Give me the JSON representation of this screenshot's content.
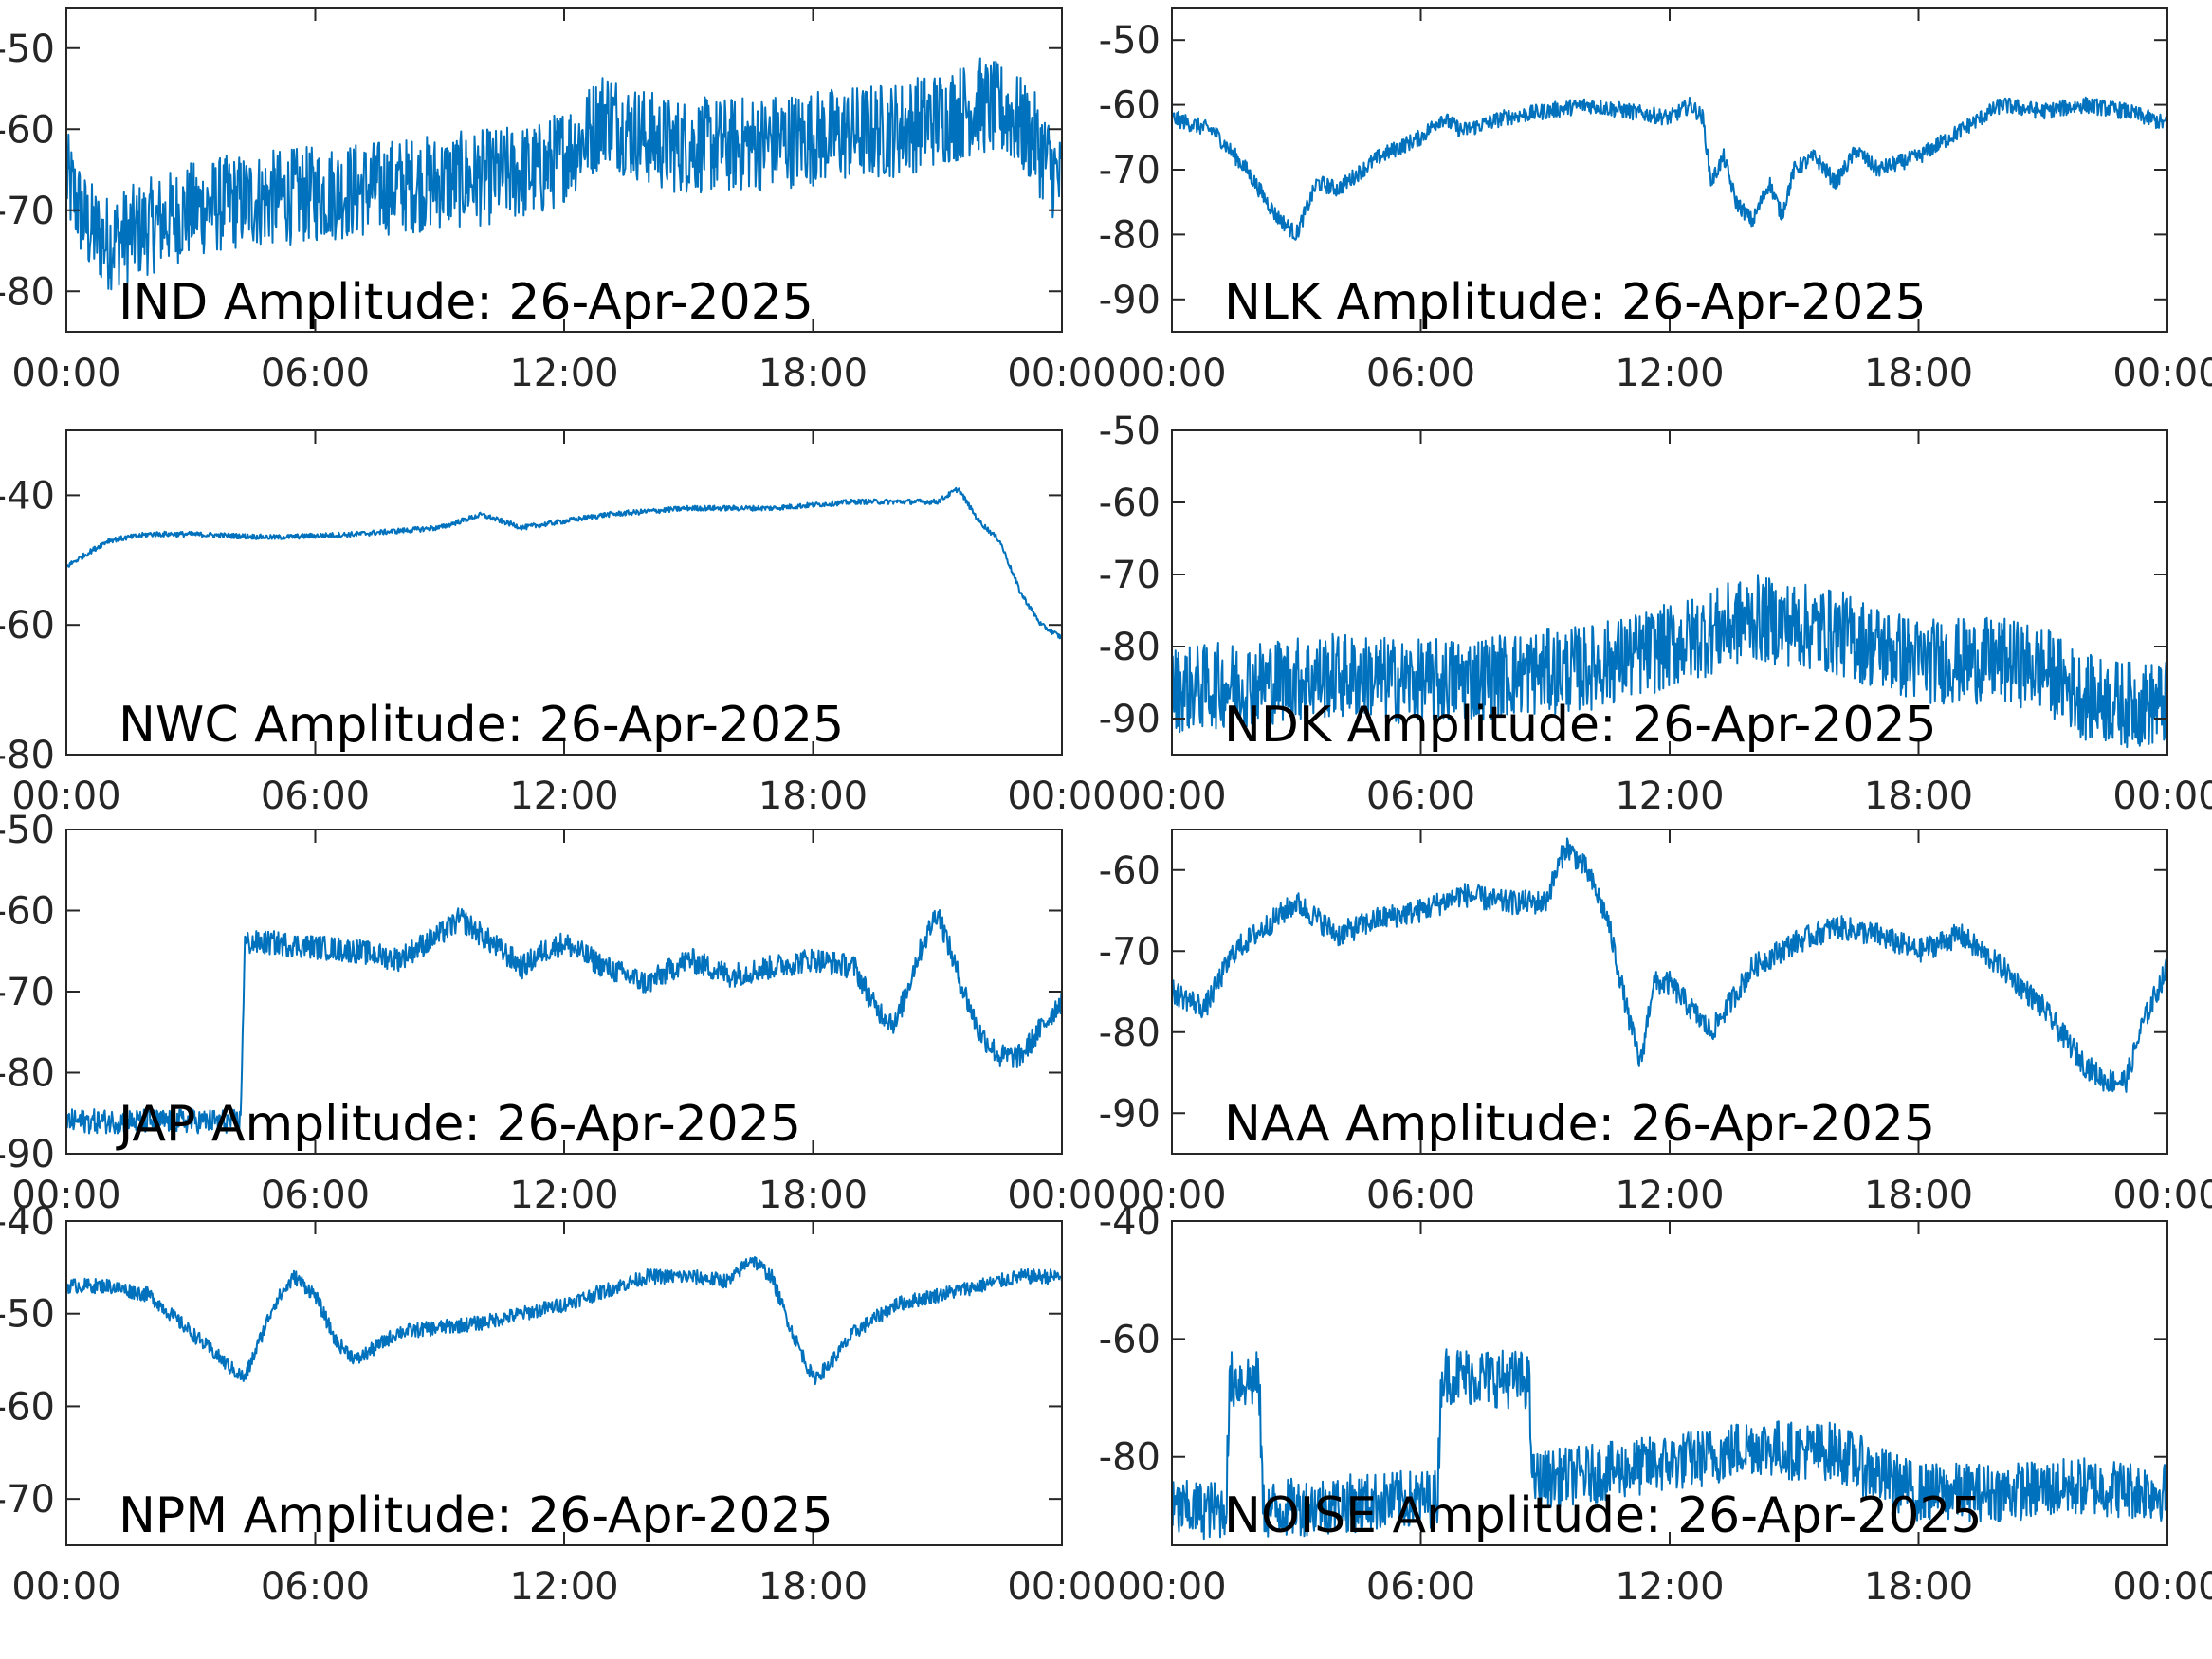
{
  "figure": {
    "trace_color": "#0072BD",
    "x_axis": {
      "ticks": [
        "00:00",
        "06:00",
        "12:00",
        "18:00",
        "00:00"
      ],
      "range_hours": [
        0,
        24
      ]
    }
  },
  "chart_data": [
    {
      "type": "line",
      "title": "IND Amplitude: 26-Apr-2025",
      "x_unit": "hours",
      "ylim": [
        -85,
        -45
      ],
      "y_ticks": [
        -50,
        -60,
        -70,
        -80
      ],
      "y_tick_labels": [
        "-50",
        "-60",
        "-70",
        "-80"
      ],
      "noise_band": 12,
      "series": [
        {
          "x": [
            0,
            0.5,
            1,
            2,
            3,
            4,
            6,
            8,
            10,
            11.5,
            12.5,
            13,
            13.5,
            14.5,
            16,
            18,
            20,
            21.5,
            22,
            22.7,
            23.3,
            24
          ],
          "y": [
            -66,
            -72,
            -74,
            -72,
            -70,
            -69,
            -68,
            -67,
            -66,
            -65,
            -61,
            -58,
            -60,
            -62,
            -62,
            -61,
            -60,
            -58,
            -57,
            -58,
            -61,
            -67
          ]
        }
      ]
    },
    {
      "type": "line",
      "title": "NLK Amplitude: 26-Apr-2025",
      "x_unit": "hours",
      "ylim": [
        -95,
        -45
      ],
      "y_ticks": [
        -50,
        -60,
        -70,
        -80,
        -90
      ],
      "y_tick_labels": [
        "-50",
        "-60",
        "-70",
        "-80",
        "-90"
      ],
      "noise_band": 2.5,
      "series": [
        {
          "x": [
            0,
            1,
            1.8,
            2.5,
            3,
            3.5,
            4,
            5,
            6,
            6.5,
            7,
            8,
            9,
            10,
            11,
            12,
            12.5,
            12.8,
            13,
            13.3,
            13.6,
            14,
            14.4,
            14.7,
            15,
            15.5,
            16,
            16.5,
            17,
            18,
            19,
            20,
            21,
            22,
            23,
            24
          ],
          "y": [
            -62,
            -64,
            -70,
            -77,
            -80,
            -72,
            -73,
            -68,
            -65,
            -62,
            -64,
            -62,
            -61,
            -60,
            -61,
            -62,
            -60,
            -62,
            -72,
            -68,
            -75,
            -78,
            -72,
            -77,
            -70,
            -68,
            -72,
            -67,
            -70,
            -68,
            -64,
            -60,
            -61,
            -60,
            -61,
            -63
          ]
        }
      ]
    },
    {
      "type": "line",
      "title": "NWC Amplitude: 26-Apr-2025",
      "x_unit": "hours",
      "ylim": [
        -80,
        -30
      ],
      "y_ticks": [
        -40,
        -60,
        -80
      ],
      "y_tick_labels": [
        "-40",
        "-60",
        "-80"
      ],
      "noise_band": 0.8,
      "series": [
        {
          "x": [
            0,
            1,
            2,
            3,
            5,
            7,
            9,
            10,
            11,
            13,
            15,
            17,
            19,
            20,
            21,
            21.5,
            22,
            22.5,
            23,
            23.5,
            24
          ],
          "y": [
            -51,
            -47,
            -46,
            -46,
            -46.5,
            -46,
            -45,
            -43,
            -45,
            -43,
            -42,
            -42,
            -41,
            -41,
            -41,
            -39,
            -44,
            -47,
            -55,
            -60,
            -62
          ]
        }
      ]
    },
    {
      "type": "line",
      "title": "NDK Amplitude: 26-Apr-2025",
      "x_unit": "hours",
      "ylim": [
        -95,
        -50
      ],
      "y_ticks": [
        -50,
        -60,
        -70,
        -80,
        -90
      ],
      "y_tick_labels": [
        "-50",
        "-60",
        "-70",
        "-80",
        "-90"
      ],
      "noise_band": 12,
      "series": [
        {
          "x": [
            0,
            2,
            4,
            6,
            8,
            10,
            12,
            14,
            16,
            18,
            20,
            21,
            22,
            23,
            24
          ],
          "y": [
            -86,
            -85,
            -84,
            -85,
            -84,
            -83,
            -80,
            -76,
            -78,
            -82,
            -82,
            -83,
            -87,
            -88,
            -88
          ]
        }
      ]
    },
    {
      "type": "line",
      "title": "JAP Amplitude: 26-Apr-2025",
      "x_unit": "hours",
      "ylim": [
        -90,
        -50
      ],
      "y_ticks": [
        -50,
        -60,
        -70,
        -80,
        -90
      ],
      "y_tick_labels": [
        "-50",
        "-60",
        "-70",
        "-80",
        "-90"
      ],
      "noise_band": 3,
      "series": [
        {
          "x": [
            0,
            1,
            2,
            3,
            4.2,
            4.3,
            5,
            6,
            7,
            8,
            9,
            9.5,
            10,
            11,
            11.5,
            12,
            13,
            14,
            15,
            16,
            17,
            18,
            19,
            19.5,
            20,
            20.5,
            21,
            21.5,
            22,
            22.5,
            23,
            24
          ],
          "y": [
            -86,
            -86,
            -86,
            -86,
            -86,
            -64,
            -64,
            -64.5,
            -65,
            -66,
            -63,
            -61,
            -63,
            -67,
            -65,
            -64,
            -67,
            -69,
            -66,
            -68,
            -67,
            -66,
            -67,
            -72,
            -74,
            -66,
            -60,
            -68,
            -75,
            -78,
            -78,
            -71
          ]
        }
      ]
    },
    {
      "type": "line",
      "title": "NAA Amplitude: 26-Apr-2025",
      "x_unit": "hours",
      "ylim": [
        -95,
        -55
      ],
      "y_ticks": [
        -60,
        -70,
        -80,
        -90
      ],
      "y_tick_labels": [
        "-60",
        "-70",
        "-80",
        "-90"
      ],
      "noise_band": 3,
      "series": [
        {
          "x": [
            0,
            0.8,
            1.5,
            2,
            3,
            4,
            5,
            6,
            7,
            8,
            9,
            9.5,
            10,
            10.5,
            11,
            11.3,
            11.6,
            12,
            13,
            14,
            15,
            16,
            17,
            18,
            19,
            20,
            21,
            22,
            22.5,
            23,
            23.4,
            24
          ],
          "y": [
            -75,
            -77,
            -70,
            -68,
            -64,
            -68,
            -66,
            -65,
            -63,
            -64,
            -64,
            -57,
            -60,
            -66,
            -78,
            -84,
            -74,
            -74,
            -80,
            -72,
            -69,
            -67,
            -68,
            -70,
            -68,
            -72,
            -77,
            -84,
            -86,
            -86,
            -79,
            -72
          ]
        }
      ]
    },
    {
      "type": "line",
      "title": "NPM Amplitude: 26-Apr-2025",
      "x_unit": "hours",
      "ylim": [
        -75,
        -40
      ],
      "y_ticks": [
        -40,
        -50,
        -60,
        -70
      ],
      "y_tick_labels": [
        "-40",
        "-50",
        "-60",
        "-70"
      ],
      "noise_band": 1.6,
      "series": [
        {
          "x": [
            0,
            1,
            2,
            3,
            4,
            4.3,
            5,
            5.5,
            6,
            6.5,
            7,
            8,
            10,
            12,
            14,
            15,
            16,
            16.5,
            17,
            17.5,
            18,
            18.3,
            19,
            20,
            21,
            22,
            23,
            24
          ],
          "y": [
            -47,
            -47,
            -48,
            -52,
            -56,
            -57,
            -49,
            -46,
            -48,
            -53,
            -55,
            -52,
            -51,
            -49,
            -46,
            -46,
            -46.5,
            -44,
            -46,
            -52,
            -57,
            -56,
            -52,
            -49,
            -48,
            -47,
            -46,
            -46
          ]
        }
      ]
    },
    {
      "type": "line",
      "title": "NOISE Amplitude: 26-Apr-2025",
      "x_unit": "hours",
      "ylim": [
        -95,
        -40
      ],
      "y_ticks": [
        -40,
        -60,
        -80
      ],
      "y_tick_labels": [
        "-40",
        "-60",
        "-80"
      ],
      "noise_band": 10,
      "series": [
        {
          "x": [
            0,
            1,
            1.3,
            1.4,
            2.1,
            2.2,
            4,
            6.4,
            6.5,
            8.6,
            8.7,
            10,
            12,
            13,
            14,
            15,
            16,
            17,
            18,
            20,
            22,
            24
          ],
          "y": [
            -89,
            -89,
            -89,
            -67,
            -67,
            -89,
            -88,
            -87,
            -66,
            -67,
            -84,
            -83,
            -81,
            -80,
            -78,
            -79,
            -79,
            -83,
            -86,
            -86,
            -85,
            -86
          ]
        }
      ]
    }
  ]
}
